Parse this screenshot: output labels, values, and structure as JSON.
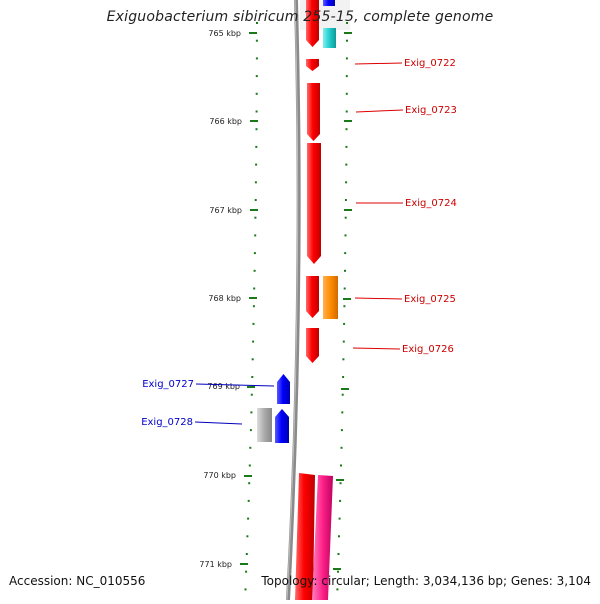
{
  "title": "Exiguobacterium sibiricum 255-15, complete genome",
  "footer": {
    "accession": "Accession: NC_010556",
    "info": "Topology: circular; Length: 3,034,136 bp; Genes: 3,104"
  },
  "ticks": [
    "765 kbp",
    "766 kbp",
    "767 kbp",
    "768 kbp",
    "769 kbp",
    "770 kbp",
    "771 kbp"
  ],
  "genes": {
    "Exig_0722": "Exig_0722",
    "Exig_0723": "Exig_0723",
    "Exig_0724": "Exig_0724",
    "Exig_0725": "Exig_0725",
    "Exig_0726": "Exig_0726",
    "Exig_0727": "Exig_0727",
    "Exig_0728": "Exig_0728"
  },
  "colors": {
    "forward_gene": "#ff0000",
    "reverse_gene": "#0000ff",
    "tick": "#1a7a1a",
    "backbone": "#888888",
    "orange_feature": "#ff8c00",
    "cyan_feature": "#22cccc",
    "pink_feature": "#ff2288",
    "gray_feature": "#aaaaaa"
  }
}
